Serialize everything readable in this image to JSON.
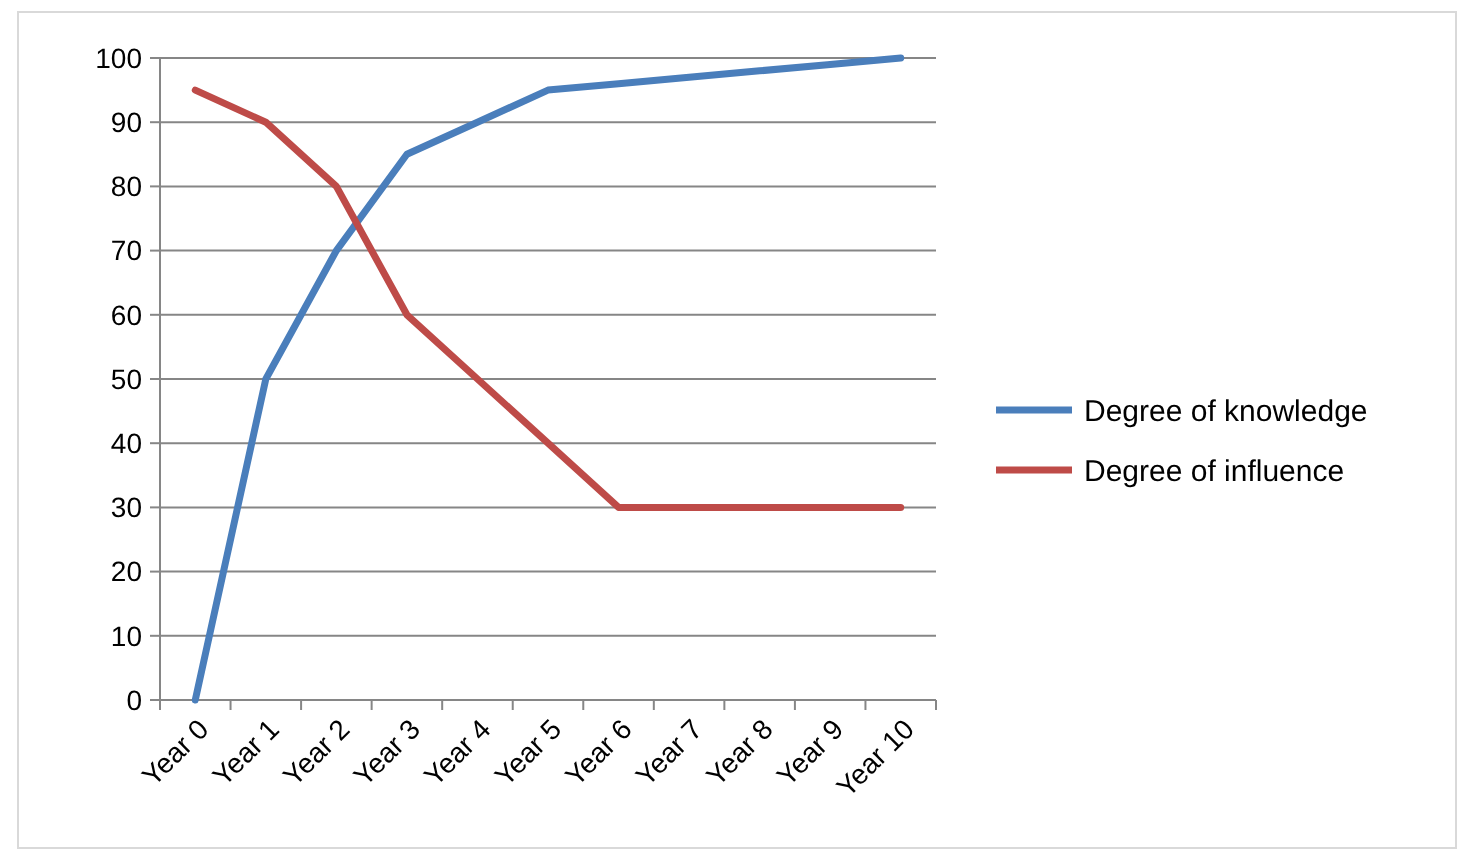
{
  "chart_data": {
    "type": "line",
    "categories": [
      "Year 0",
      "Year 1",
      "Year 2",
      "Year 3",
      "Year 4",
      "Year 5",
      "Year 6",
      "Year 7",
      "Year 8",
      "Year 9",
      "Year 10"
    ],
    "series": [
      {
        "name": "Degree of knowledge",
        "color": "#4a7ebb",
        "values": [
          0,
          50,
          70,
          85,
          90,
          95,
          96,
          97,
          98,
          99,
          100
        ]
      },
      {
        "name": "Degree of influence",
        "color": "#be4b48",
        "values": [
          95,
          90,
          80,
          60,
          50,
          40,
          30,
          30,
          30,
          30,
          30
        ]
      }
    ],
    "ylim": [
      0,
      100
    ],
    "yticks": [
      0,
      10,
      20,
      30,
      40,
      50,
      60,
      70,
      80,
      90,
      100
    ],
    "grid": "y",
    "legend": "right",
    "marker": "none",
    "line_style": "solid"
  }
}
